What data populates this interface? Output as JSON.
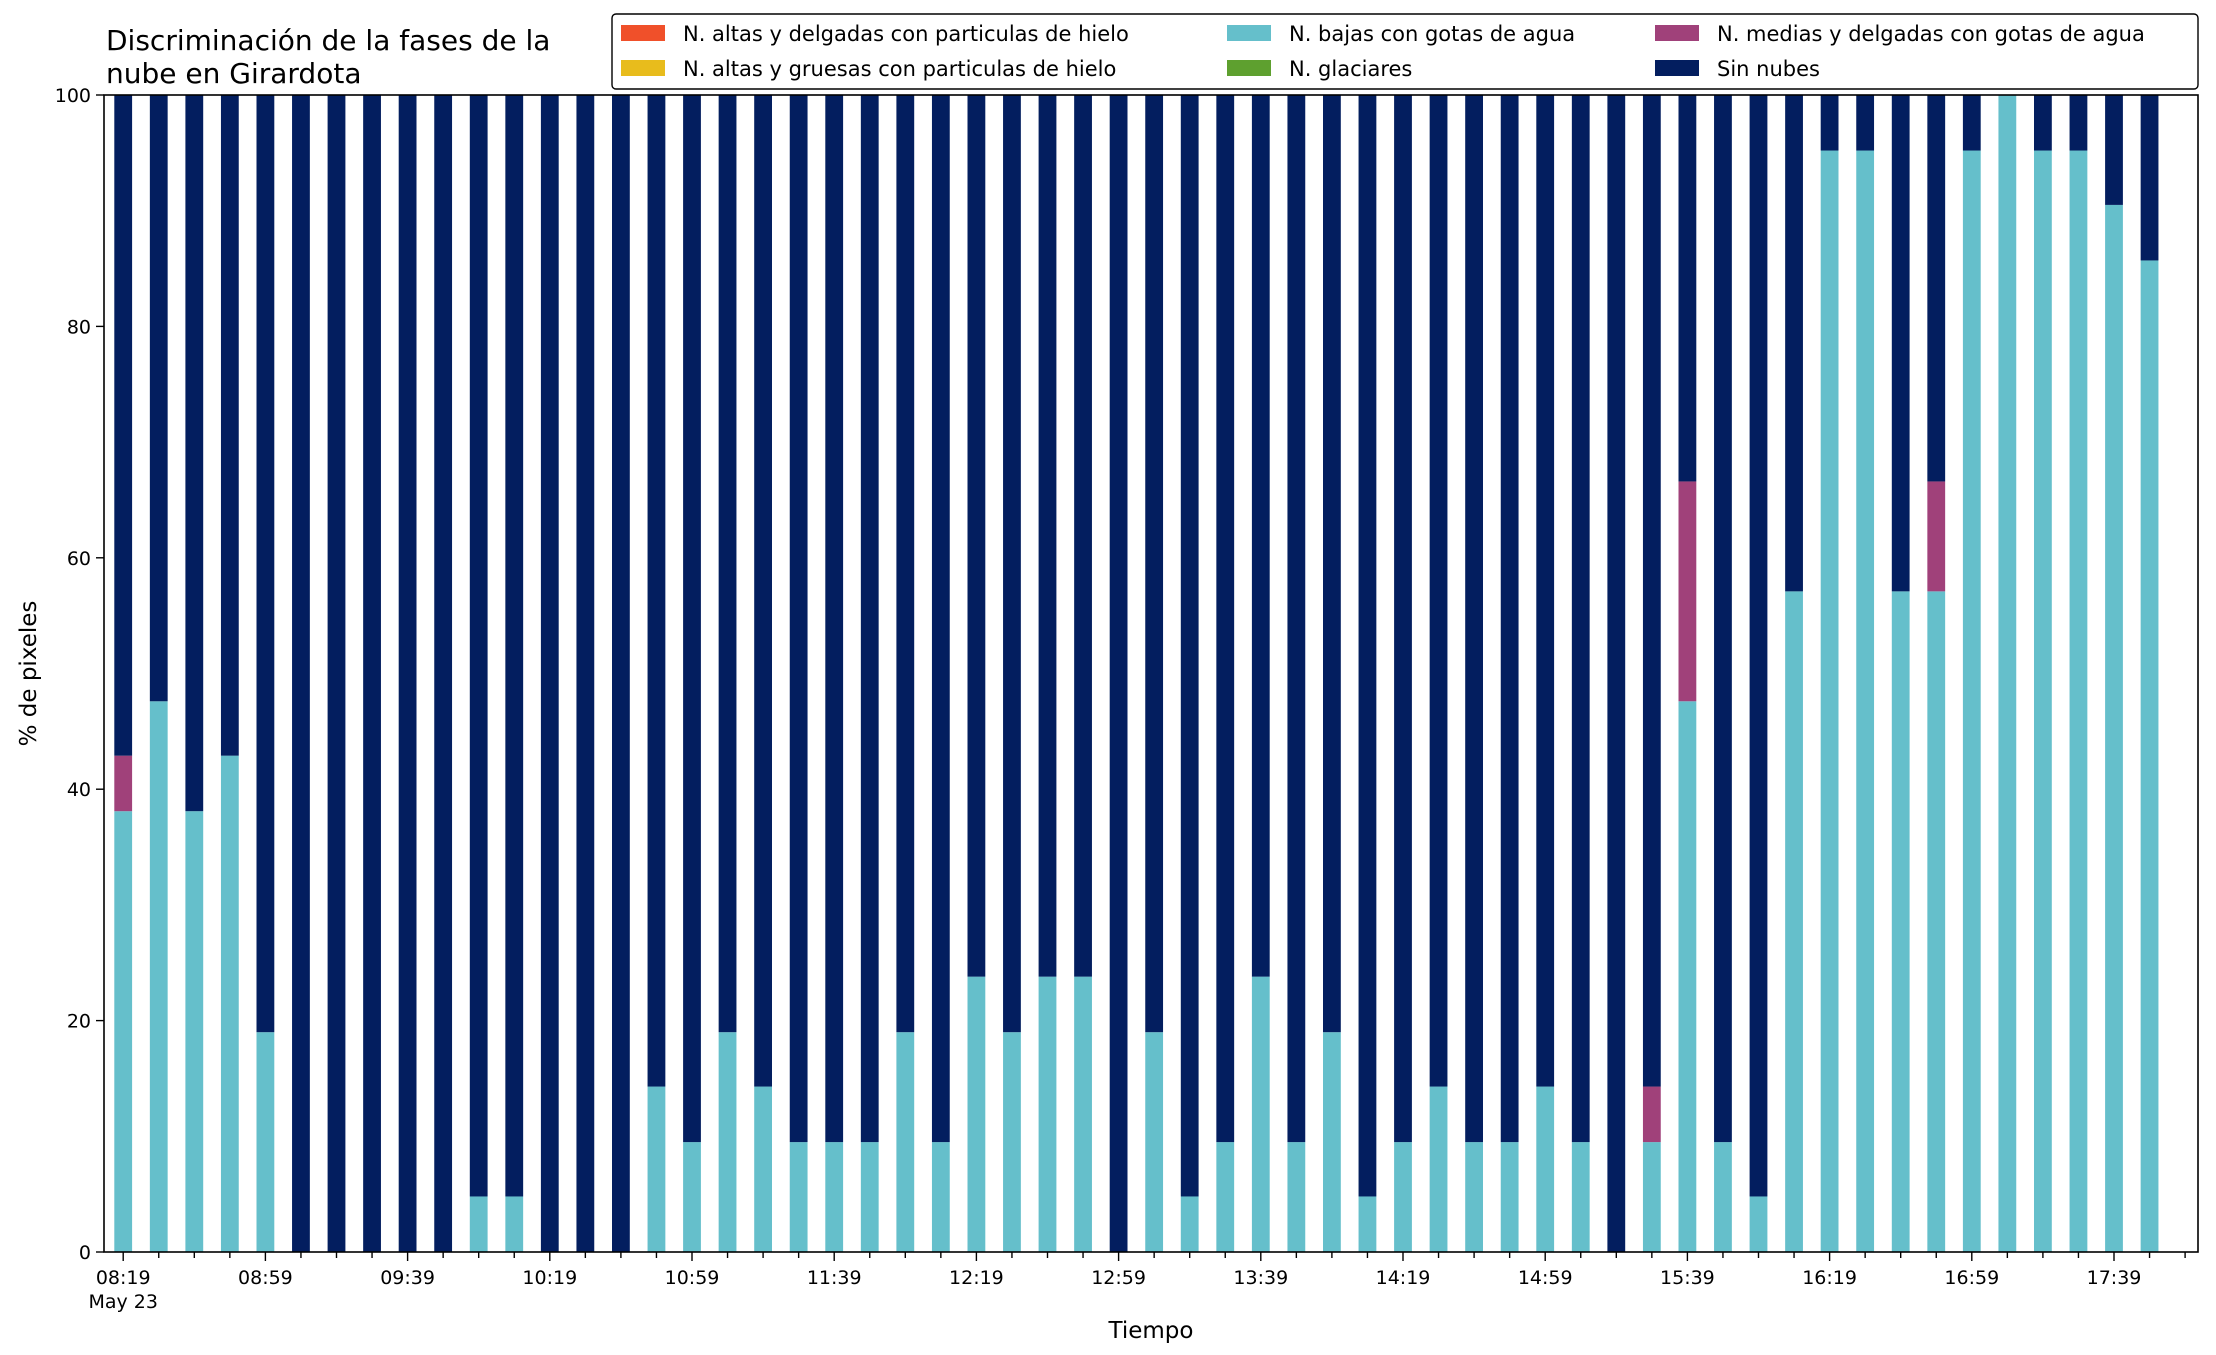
{
  "chart_data": {
    "type": "bar",
    "stacked": true,
    "title": "Discriminación de la fases de la\nnube en Girardota",
    "xlabel": "Tiempo",
    "ylabel": "% de pixeles",
    "ylim": [
      0,
      100
    ],
    "yticks": [
      0,
      20,
      40,
      60,
      80,
      100
    ],
    "grid": false,
    "legend_position": "top-right",
    "legend_columns": 3,
    "date_label": "May 23",
    "categories": [
      "08:19",
      "08:29",
      "08:39",
      "08:49",
      "08:59",
      "09:09",
      "09:19",
      "09:29",
      "09:39",
      "09:49",
      "09:59",
      "10:09",
      "10:19",
      "10:29",
      "10:39",
      "10:49",
      "10:59",
      "11:09",
      "11:19",
      "11:29",
      "11:39",
      "11:49",
      "11:59",
      "12:09",
      "12:19",
      "12:29",
      "12:39",
      "12:49",
      "12:59",
      "13:09",
      "13:19",
      "13:29",
      "13:39",
      "13:49",
      "13:59",
      "14:09",
      "14:19",
      "14:29",
      "14:39",
      "14:49",
      "14:59",
      "15:09",
      "15:19",
      "15:29",
      "15:39",
      "15:49",
      "15:59",
      "16:09",
      "16:19",
      "16:29",
      "16:39",
      "16:49",
      "16:59",
      "17:09",
      "17:19",
      "17:29",
      "17:39",
      "17:49"
    ],
    "tick_labels": [
      "08:19",
      "08:59",
      "09:39",
      "10:19",
      "10:59",
      "11:39",
      "12:19",
      "12:59",
      "13:39",
      "14:19",
      "14:59",
      "15:39",
      "16:19",
      "16:59",
      "17:39"
    ],
    "series": [
      {
        "name": "N. altas y delgadas con particulas de hielo",
        "color": "#f0502a",
        "values": [
          0,
          0,
          0,
          0,
          0,
          0,
          0,
          0,
          0,
          0,
          0,
          0,
          0,
          0,
          0,
          0,
          0,
          0,
          0,
          0,
          0,
          0,
          0,
          0,
          0,
          0,
          0,
          0,
          0,
          0,
          0,
          0,
          0,
          0,
          0,
          0,
          0,
          0,
          0,
          0,
          0,
          0,
          0,
          0,
          0,
          0,
          0,
          0,
          0,
          0,
          0,
          0,
          0,
          0,
          0,
          0,
          0,
          0
        ]
      },
      {
        "name": "N. altas y gruesas con particulas de hielo",
        "color": "#e8bc1c",
        "values": [
          0,
          0,
          0,
          0,
          0,
          0,
          0,
          0,
          0,
          0,
          0,
          0,
          0,
          0,
          0,
          0,
          0,
          0,
          0,
          0,
          0,
          0,
          0,
          0,
          0,
          0,
          0,
          0,
          0,
          0,
          0,
          0,
          0,
          0,
          0,
          0,
          0,
          0,
          0,
          0,
          0,
          0,
          0,
          0,
          0,
          0,
          0,
          0,
          0,
          0,
          0,
          0,
          0,
          0,
          0,
          0,
          0,
          0
        ]
      },
      {
        "name": "N. bajas con gotas de agua",
        "color": "#65bfcb",
        "values": [
          38.1,
          47.6,
          38.1,
          42.9,
          19,
          0,
          0,
          0,
          0,
          0,
          4.8,
          4.8,
          0,
          0,
          0,
          14.3,
          9.5,
          19,
          14.3,
          9.5,
          9.5,
          9.5,
          19,
          9.5,
          23.8,
          19,
          23.8,
          23.8,
          0,
          19,
          4.8,
          9.5,
          23.8,
          9.5,
          19,
          4.8,
          9.5,
          14.3,
          9.5,
          9.5,
          14.3,
          9.5,
          0,
          9.5,
          47.6,
          9.5,
          4.8,
          57.1,
          95.2,
          95.2,
          57.1,
          57.1,
          95.2,
          100,
          95.2,
          95.2,
          90.5,
          85.7
        ]
      },
      {
        "name": "N. glaciares",
        "color": "#5ea02f",
        "values": [
          0,
          0,
          0,
          0,
          0,
          0,
          0,
          0,
          0,
          0,
          0,
          0,
          0,
          0,
          0,
          0,
          0,
          0,
          0,
          0,
          0,
          0,
          0,
          0,
          0,
          0,
          0,
          0,
          0,
          0,
          0,
          0,
          0,
          0,
          0,
          0,
          0,
          0,
          0,
          0,
          0,
          0,
          0,
          0,
          0,
          0,
          0,
          0,
          0,
          0,
          0,
          0,
          0,
          0,
          0,
          0,
          0,
          0
        ]
      },
      {
        "name": "N. medias y delgadas con gotas de agua",
        "color": "#a0417a",
        "values": [
          4.8,
          0,
          0,
          0,
          0,
          0,
          0,
          0,
          0,
          0,
          0,
          0,
          0,
          0,
          0,
          0,
          0,
          0,
          0,
          0,
          0,
          0,
          0,
          0,
          0,
          0,
          0,
          0,
          0,
          0,
          0,
          0,
          0,
          0,
          0,
          0,
          0,
          0,
          0,
          0,
          0,
          0,
          0,
          4.8,
          19,
          0,
          0,
          0,
          0,
          0,
          0,
          9.5,
          0,
          0,
          0,
          0,
          0,
          0
        ]
      },
      {
        "name": "Sin nubes",
        "color": "#031e5f",
        "values": [
          57.1,
          52.4,
          61.9,
          57.1,
          81,
          100,
          100,
          100,
          100,
          100,
          95.2,
          95.2,
          100,
          100,
          100,
          85.7,
          90.5,
          81,
          85.7,
          90.5,
          90.5,
          90.5,
          81,
          90.5,
          76.2,
          81,
          76.2,
          76.2,
          100,
          81,
          95.2,
          90.5,
          76.2,
          90.5,
          81,
          95.2,
          90.5,
          85.7,
          90.5,
          90.5,
          85.7,
          90.5,
          100,
          85.7,
          33.4,
          90.5,
          95.2,
          42.9,
          4.8,
          4.8,
          42.9,
          33.4,
          4.8,
          0,
          4.8,
          4.8,
          9.5,
          14.3
        ]
      }
    ],
    "legend_order": [
      0,
      1,
      2,
      3,
      4,
      5
    ]
  }
}
